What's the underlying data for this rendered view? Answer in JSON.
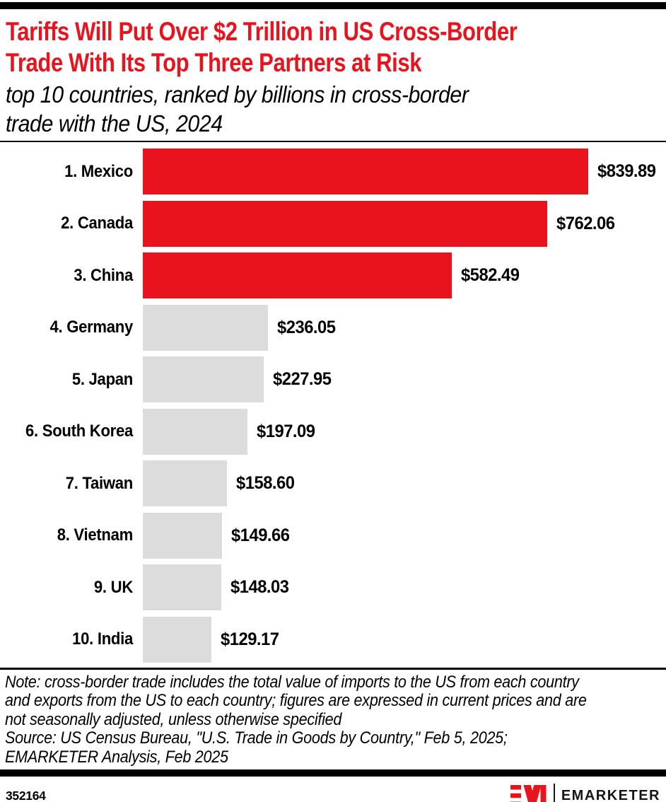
{
  "header": {
    "title_lines": [
      "Tariffs Will Put Over $2 Trillion in US Cross-Border",
      "Trade With Its Top Three Partners at Risk"
    ],
    "subtitle_lines": [
      "top 10 countries, ranked by billions in cross-border",
      "trade with the US, 2024"
    ]
  },
  "chart_data": {
    "type": "bar",
    "orientation": "horizontal",
    "title": "Tariffs Will Put Over $2 Trillion in US Cross-Border Trade With Its Top Three Partners at Risk",
    "subtitle": "top 10 countries, ranked by billions in cross-border trade with the US, 2024",
    "categories": [
      "1. Mexico",
      "2. Canada",
      "3. China",
      "4. Germany",
      "5. Japan",
      "6. South Korea",
      "7. Taiwan",
      "8. Vietnam",
      "9. UK",
      "10. India"
    ],
    "values": [
      839.89,
      762.06,
      582.49,
      236.05,
      227.95,
      197.09,
      158.6,
      149.66,
      148.03,
      129.17
    ],
    "value_labels": [
      "$839.89",
      "$762.06",
      "$582.49",
      "$236.05",
      "$227.95",
      "$197.09",
      "$158.60",
      "$149.66",
      "$148.03",
      "$129.17"
    ],
    "unit": "billions of US dollars",
    "xlim": [
      0,
      840
    ],
    "highlight_count": 3,
    "colors": {
      "highlight": "#e8131d",
      "default": "#dcdcdc"
    },
    "grid": false,
    "legend": "none"
  },
  "footnote": {
    "note_lines": [
      "Note: cross-border trade includes the total value of imports to the US from each country",
      "and exports from the US to each country; figures are expressed in current prices and are",
      "not seasonally adjusted, unless otherwise specified",
      "Source: US Census Bureau, \"U.S. Trade in Goods by Country,\" Feb 5, 2025;",
      "EMARKETER Analysis, Feb 2025"
    ]
  },
  "footer": {
    "chart_id": "352164",
    "brand": "EMARKETER"
  },
  "colors": {
    "accent_red": "#e8131d",
    "bar_gray": "#dcdcdc",
    "bar_black": "#000000"
  }
}
